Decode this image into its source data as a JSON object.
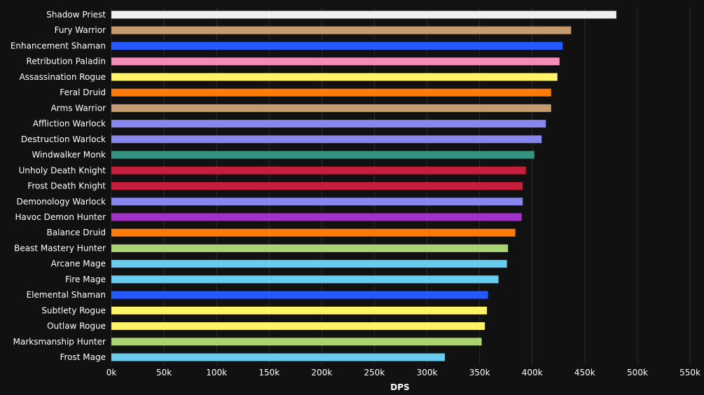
{
  "chart_data": {
    "type": "bar",
    "orientation": "horizontal",
    "xlabel": "DPS",
    "xlim": [
      0,
      550000
    ],
    "xticks": [
      0,
      50000,
      100000,
      150000,
      200000,
      250000,
      300000,
      350000,
      400000,
      450000,
      500000,
      550000
    ],
    "xtick_labels": [
      "0k",
      "50k",
      "100k",
      "150k",
      "200k",
      "250k",
      "300k",
      "350k",
      "400k",
      "450k",
      "500k",
      "550k"
    ],
    "grid": true,
    "categories": [
      "Shadow Priest",
      "Fury Warrior",
      "Enhancement Shaman",
      "Retribution Paladin",
      "Assassination Rogue",
      "Feral Druid",
      "Arms Warrior",
      "Affliction Warlock",
      "Destruction Warlock",
      "Windwalker Monk",
      "Unholy Death Knight",
      "Frost Death Knight",
      "Demonology Warlock",
      "Havoc Demon Hunter",
      "Balance Druid",
      "Beast Mastery Hunter",
      "Arcane Mage",
      "Fire Mage",
      "Elemental Shaman",
      "Subtlety Rogue",
      "Outlaw Rogue",
      "Marksmanship Hunter",
      "Frost Mage"
    ],
    "values": [
      480000,
      437000,
      429000,
      426000,
      424000,
      418000,
      418000,
      413000,
      409000,
      402000,
      394000,
      391000,
      391000,
      390000,
      384000,
      377000,
      376000,
      368000,
      358000,
      357000,
      355000,
      352000,
      317000
    ],
    "colors": [
      "#f0f0f0",
      "#c69b6d",
      "#2359ff",
      "#f48cba",
      "#fff468",
      "#ff7c0a",
      "#c69b6d",
      "#8788ee",
      "#8788ee",
      "#33937f",
      "#c41e3a",
      "#c41e3a",
      "#8788ee",
      "#a330c9",
      "#ff7c0a",
      "#aad372",
      "#68ccef",
      "#68ccef",
      "#2359ff",
      "#fff468",
      "#fff468",
      "#aad372",
      "#68ccef"
    ]
  }
}
